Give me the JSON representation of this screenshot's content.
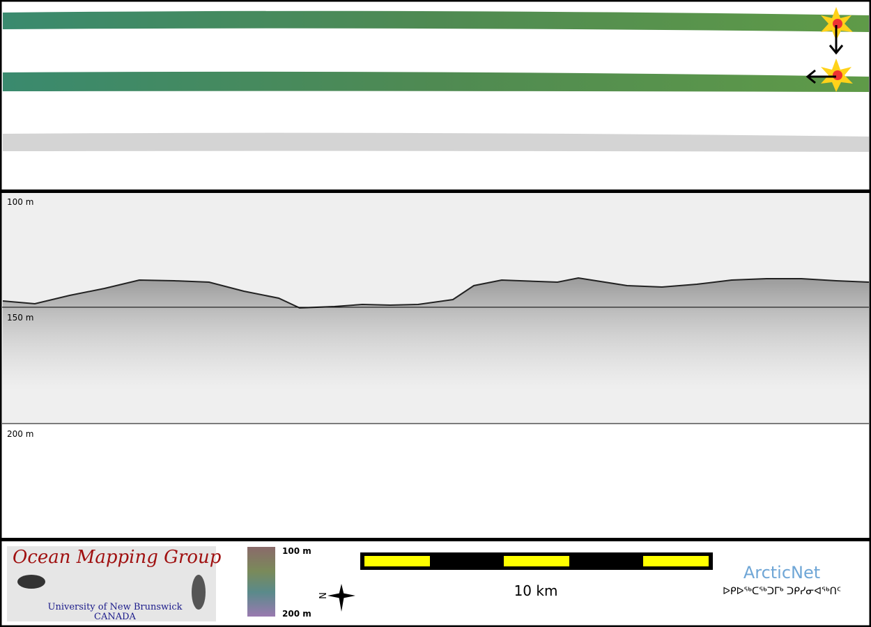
{
  "profile": {
    "depth_labels": [
      "100 m",
      "150 m",
      "200 m"
    ]
  },
  "footer": {
    "logo": {
      "title": "Ocean Mapping Group",
      "university": "University of New Brunswick",
      "country": "CANADA"
    },
    "colorbar": {
      "top": "100 m",
      "bottom": "200 m"
    },
    "compass": "N",
    "scale": "10 km",
    "partner": {
      "name": "ArcticNet",
      "syllabics": "ᐅᑭᐅᖅᑕᖅᑐᒥᒃ ᑐᑭᓯᓂᐊᖅᑎᑦ"
    }
  }
}
